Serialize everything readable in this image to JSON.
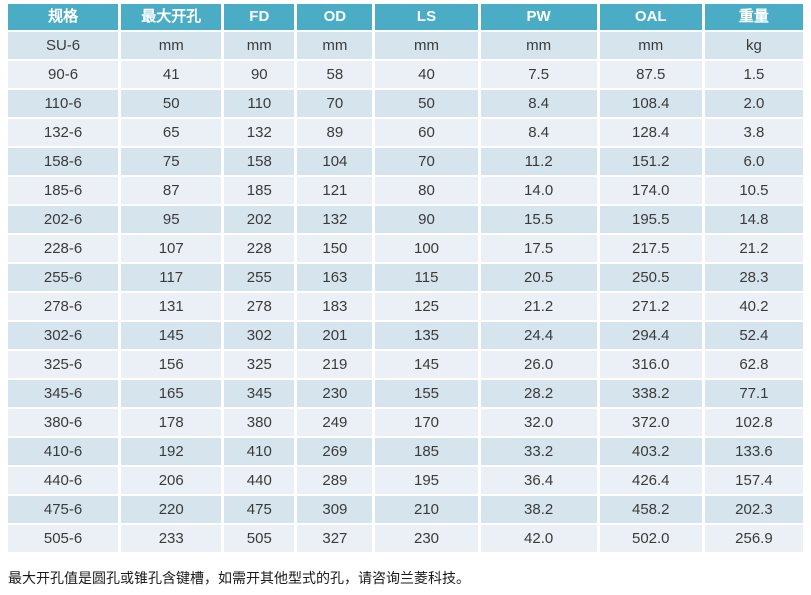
{
  "colors": {
    "header_bg": "#4AACC5",
    "row_dark": "#D6E4EE",
    "row_light": "#EAF0F5",
    "header_text": "#FFFFFF",
    "body_text": "#3B3B3B"
  },
  "table": {
    "headers": [
      "规格",
      "最大开孔",
      "FD",
      "OD",
      "LS",
      "PW",
      "OAL",
      "重量"
    ],
    "units_row": [
      "SU-6",
      "mm",
      "mm",
      "mm",
      "mm",
      "mm",
      "mm",
      "kg"
    ],
    "rows": [
      [
        "90-6",
        "41",
        "90",
        "58",
        "40",
        "7.5",
        "87.5",
        "1.5"
      ],
      [
        "110-6",
        "50",
        "110",
        "70",
        "50",
        "8.4",
        "108.4",
        "2.0"
      ],
      [
        "132-6",
        "65",
        "132",
        "89",
        "60",
        "8.4",
        "128.4",
        "3.8"
      ],
      [
        "158-6",
        "75",
        "158",
        "104",
        "70",
        "11.2",
        "151.2",
        "6.0"
      ],
      [
        "185-6",
        "87",
        "185",
        "121",
        "80",
        "14.0",
        "174.0",
        "10.5"
      ],
      [
        "202-6",
        "95",
        "202",
        "132",
        "90",
        "15.5",
        "195.5",
        "14.8"
      ],
      [
        "228-6",
        "107",
        "228",
        "150",
        "100",
        "17.5",
        "217.5",
        "21.2"
      ],
      [
        "255-6",
        "117",
        "255",
        "163",
        "115",
        "20.5",
        "250.5",
        "28.3"
      ],
      [
        "278-6",
        "131",
        "278",
        "183",
        "125",
        "21.2",
        "271.2",
        "40.2"
      ],
      [
        "302-6",
        "145",
        "302",
        "201",
        "135",
        "24.4",
        "294.4",
        "52.4"
      ],
      [
        "325-6",
        "156",
        "325",
        "219",
        "145",
        "26.0",
        "316.0",
        "62.8"
      ],
      [
        "345-6",
        "165",
        "345",
        "230",
        "155",
        "28.2",
        "338.2",
        "77.1"
      ],
      [
        "380-6",
        "178",
        "380",
        "249",
        "170",
        "32.0",
        "372.0",
        "102.8"
      ],
      [
        "410-6",
        "192",
        "410",
        "269",
        "185",
        "33.2",
        "403.2",
        "133.6"
      ],
      [
        "440-6",
        "206",
        "440",
        "289",
        "195",
        "36.4",
        "426.4",
        "157.4"
      ],
      [
        "475-6",
        "220",
        "475",
        "309",
        "210",
        "38.2",
        "458.2",
        "202.3"
      ],
      [
        "505-6",
        "233",
        "505",
        "327",
        "230",
        "42.0",
        "502.0",
        "256.9"
      ]
    ]
  },
  "footer_note": "最大开孔值是圆孔或锥孔含键槽，如需开其他型式的孔，请咨询兰菱科技。"
}
